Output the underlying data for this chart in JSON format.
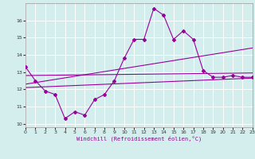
{
  "xlabel": "Windchill (Refroidissement éolien,°C)",
  "bg_color": "#d4eeee",
  "grid_color": "#ffffff",
  "line_color": "#990099",
  "xmin": 0,
  "xmax": 23,
  "ymin": 9.8,
  "ymax": 17.0,
  "yticks": [
    10,
    11,
    12,
    13,
    14,
    15,
    16
  ],
  "xticks": [
    0,
    1,
    2,
    3,
    4,
    5,
    6,
    7,
    8,
    9,
    10,
    11,
    12,
    13,
    14,
    15,
    16,
    17,
    18,
    19,
    20,
    21,
    22,
    23
  ],
  "series1_x": [
    0,
    1,
    2,
    3,
    4,
    5,
    6,
    7,
    8,
    9,
    10,
    11,
    12,
    13,
    14,
    15,
    16,
    17,
    18,
    19,
    20,
    21,
    22,
    23
  ],
  "series1_y": [
    13.3,
    12.5,
    11.9,
    11.7,
    10.3,
    10.7,
    10.5,
    11.4,
    11.7,
    12.5,
    13.8,
    14.9,
    14.9,
    16.7,
    16.3,
    14.9,
    15.4,
    14.9,
    13.1,
    12.7,
    12.7,
    12.8,
    12.7,
    12.7
  ],
  "series2_x": [
    0,
    23
  ],
  "series2_y": [
    12.3,
    14.4
  ],
  "series3_x": [
    0,
    23
  ],
  "series3_y": [
    12.1,
    12.65
  ],
  "series4_x": [
    0,
    23
  ],
  "series4_y": [
    12.8,
    12.95
  ]
}
